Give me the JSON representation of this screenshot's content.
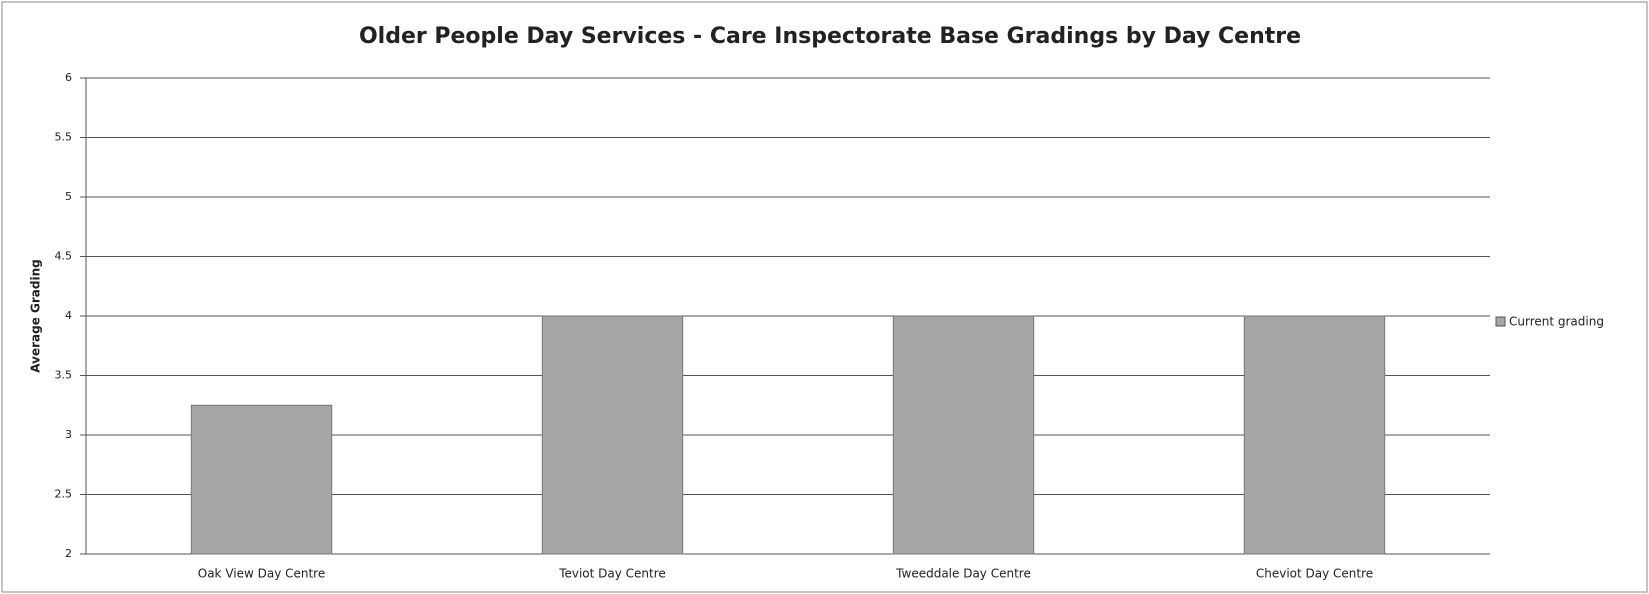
{
  "chart_data": {
    "type": "bar",
    "title": "Older People Day Services - Care Inspectorate Base Gradings by Day Centre",
    "y_label": "Average Grading",
    "categories": [
      "Oak View Day Centre",
      "Teviot Day Centre",
      "Tweeddale Day Centre",
      "Cheviot Day Centre"
    ],
    "series": [
      {
        "name": "Current grading",
        "color": "#a6a6a6",
        "values": [
          3.25,
          4,
          4,
          4
        ]
      }
    ],
    "ylim": [
      2,
      6
    ],
    "yticks": [
      2,
      2.5,
      3,
      3.5,
      4,
      4.5,
      5,
      5.5,
      6
    ],
    "grid": true,
    "legend": "right"
  }
}
